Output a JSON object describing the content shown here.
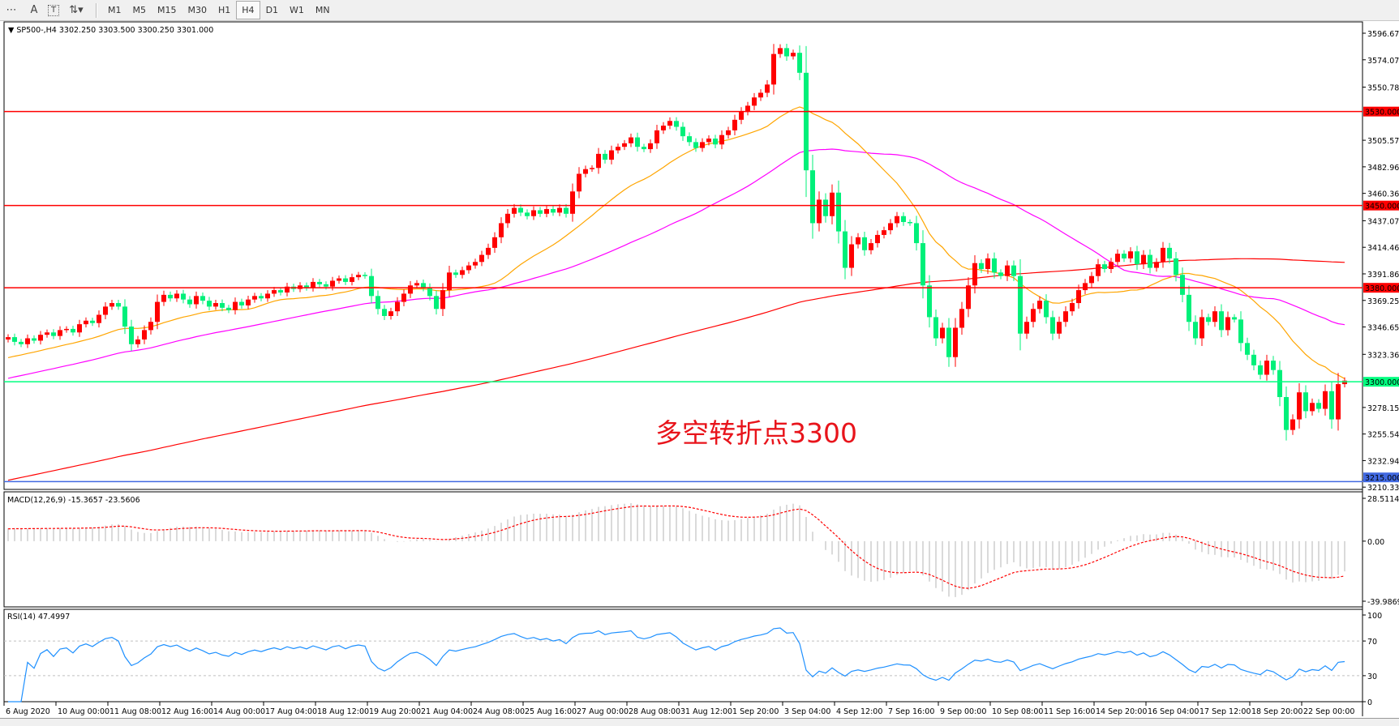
{
  "toolbar": {
    "tools": [
      {
        "icon": "crosshair-grid-icon",
        "glyph": "⋯"
      },
      {
        "icon": "text-icon",
        "glyph": "A"
      },
      {
        "icon": "text-label-icon",
        "glyph": "T"
      },
      {
        "icon": "objects-arrows-icon",
        "glyph": "⇅▾"
      }
    ],
    "timeframes": [
      "M1",
      "M5",
      "M15",
      "M30",
      "H1",
      "H4",
      "D1",
      "W1",
      "MN"
    ],
    "active_timeframe": "H4"
  },
  "chart_data": {
    "type": "candlestick",
    "header": "SP500-,H4  3302.250 3303.500 3300.250 3301.000",
    "symbol": "SP500-",
    "timeframe": "H4",
    "last_ohlc": {
      "open": 3302.25,
      "high": 3303.5,
      "low": 3300.25,
      "close": 3301.0
    },
    "ylim": [
      3210.335,
      3596.675
    ],
    "colors": {
      "up": "#ff0000",
      "down": "#00f07a",
      "ma_fast": "#ffa500",
      "ma_mid": "#ff00ff",
      "ma_slow": "#ff0000",
      "macd_hist": "#c0c0c0",
      "macd_signal": "#ff0000",
      "rsi": "#1e90ff"
    },
    "close": [
      3338,
      3334,
      3332,
      3337,
      3335,
      3340,
      3342,
      3339,
      3344,
      3345,
      3342,
      3349,
      3352,
      3350,
      3357,
      3364,
      3367,
      3364,
      3347,
      3332,
      3336,
      3344,
      3351,
      3368,
      3374,
      3371,
      3375,
      3370,
      3366,
      3373,
      3369,
      3364,
      3367,
      3363,
      3361,
      3368,
      3365,
      3370,
      3373,
      3371,
      3375,
      3378,
      3376,
      3381,
      3379,
      3382,
      3380,
      3385,
      3383,
      3381,
      3386,
      3388,
      3385,
      3389,
      3391,
      3390,
      3373,
      3362,
      3356,
      3360,
      3368,
      3375,
      3382,
      3384,
      3380,
      3373,
      3362,
      3378,
      3393,
      3391,
      3395,
      3399,
      3402,
      3408,
      3414,
      3423,
      3435,
      3443,
      3448,
      3444,
      3441,
      3446,
      3443,
      3447,
      3444,
      3448,
      3443,
      3462,
      3477,
      3481,
      3482,
      3494,
      3489,
      3497,
      3500,
      3503,
      3508,
      3500,
      3498,
      3503,
      3514,
      3518,
      3522,
      3517,
      3509,
      3504,
      3499,
      3504,
      3507,
      3502,
      3510,
      3514,
      3523,
      3530,
      3535,
      3542,
      3546,
      3553,
      3579,
      3584,
      3577,
      3580,
      3563,
      3480,
      3435,
      3455,
      3441,
      3461,
      3428,
      3397,
      3417,
      3423,
      3412,
      3418,
      3425,
      3429,
      3435,
      3441,
      3436,
      3435,
      3418,
      3382,
      3355,
      3337,
      3346,
      3321,
      3346,
      3362,
      3382,
      3401,
      3396,
      3405,
      3393,
      3390,
      3399,
      3390,
      3341,
      3351,
      3362,
      3369,
      3355,
      3341,
      3351,
      3360,
      3367,
      3378,
      3384,
      3390,
      3400,
      3396,
      3402,
      3409,
      3405,
      3411,
      3400,
      3408,
      3397,
      3402,
      3414,
      3405,
      3391,
      3374,
      3351,
      3337,
      3355,
      3351,
      3360,
      3344,
      3355,
      3353,
      3333,
      3323,
      3314,
      3306,
      3318,
      3310,
      3287,
      3259,
      3268,
      3291,
      3275,
      3282,
      3277,
      3292,
      3268,
      3298,
      3301
    ],
    "price_ticks": [
      "3596.675",
      "3574.070",
      "3550.780",
      "3505.570",
      "3482.965",
      "3460.360",
      "3437.070",
      "3414.465",
      "3391.860",
      "3369.255",
      "3346.650",
      "3323.360",
      "3278.150",
      "3255.545",
      "3232.940",
      "3210.335"
    ],
    "levels": [
      {
        "price": 3530,
        "label": "3530.000",
        "color": "#ff0000"
      },
      {
        "price": 3450,
        "label": "3450.000",
        "color": "#ff0000"
      },
      {
        "price": 3380,
        "label": "3380.000",
        "color": "#ff0000"
      },
      {
        "price": 3300,
        "label": "3300.000",
        "color": "#00ff7f"
      },
      {
        "price": 3215,
        "label": "3215.000",
        "color": "#4169e1"
      }
    ],
    "time_labels": [
      "6 Aug 2020",
      "10 Aug 00:00",
      "11 Aug 08:00",
      "12 Aug 16:00",
      "14 Aug 00:00",
      "17 Aug 04:00",
      "18 Aug 12:00",
      "19 Aug 20:00",
      "21 Aug 04:00",
      "24 Aug 08:00",
      "25 Aug 16:00",
      "27 Aug 00:00",
      "28 Aug 08:00",
      "31 Aug 12:00",
      "1 Sep 20:00",
      "3 Sep 04:00",
      "4 Sep 12:00",
      "7 Sep 16:00",
      "9 Sep 00:00",
      "10 Sep 08:00",
      "11 Sep 16:00",
      "14 Sep 20:00",
      "16 Sep 04:00",
      "17 Sep 12:00",
      "18 Sep 20:00",
      "22 Sep 00:00"
    ],
    "annotation": "多空转折点3300",
    "macd": {
      "label": "MACD(12,26,9) -15.3657 -23.5606",
      "ticks": [
        "28.5114",
        "0.00",
        "-39.9869"
      ],
      "range": [
        -39.9869,
        28.5114
      ]
    },
    "rsi": {
      "label": "RSI(14) 47.4997",
      "ticks": [
        "100",
        "70",
        "30",
        "0"
      ],
      "levels": [
        70,
        30
      ]
    }
  }
}
